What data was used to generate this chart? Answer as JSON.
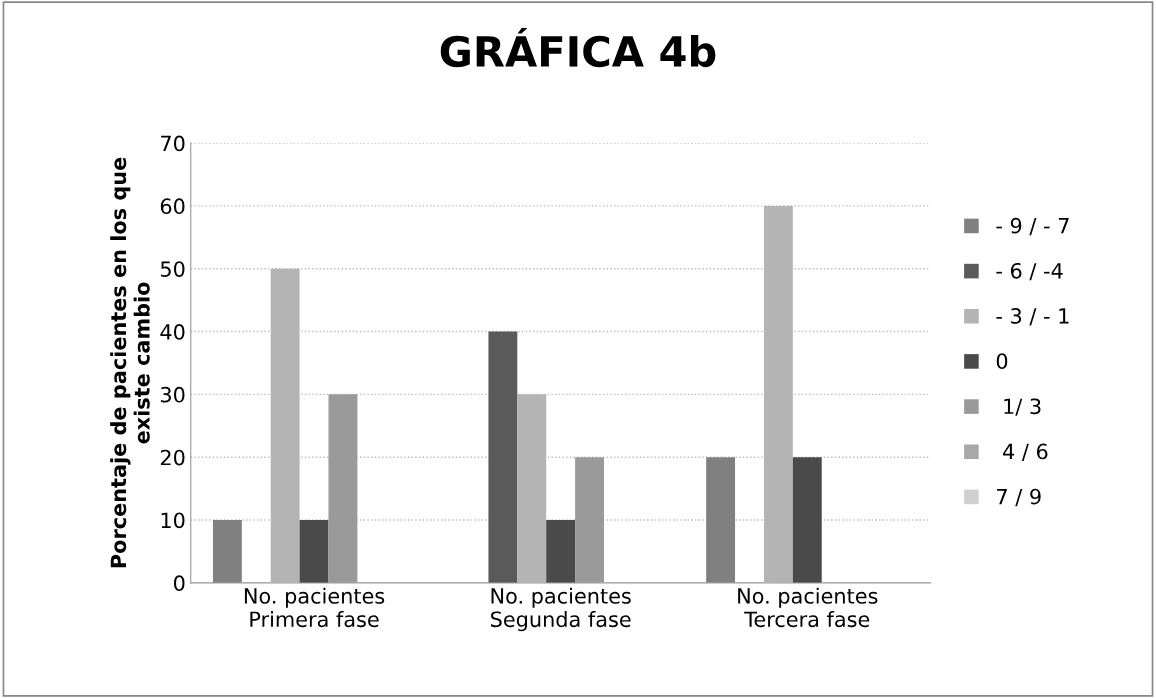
{
  "chart_data": {
    "type": "bar",
    "title": "GRÁFICA 4b",
    "ylabel": "Porcentaje de pacientes en los que\nexiste cambio",
    "categories": [
      "No. pacientes\nPrimera fase",
      "No. pacientes\nSegunda fase",
      "No. pacientes\nTercera fase"
    ],
    "series": [
      {
        "name": "- 9 / - 7",
        "color": "#808080",
        "values": [
          10,
          0,
          20
        ]
      },
      {
        "name": "- 6 / -4",
        "color": "#5a5a5a",
        "values": [
          0,
          40,
          0
        ]
      },
      {
        "name": "- 3 / - 1",
        "color": "#b4b4b4",
        "values": [
          50,
          30,
          60
        ]
      },
      {
        "name": "0",
        "color": "#4a4a4a",
        "values": [
          10,
          10,
          20
        ]
      },
      {
        "name": " 1/ 3",
        "color": "#9a9a9a",
        "values": [
          30,
          20,
          0
        ]
      },
      {
        "name": " 4 / 6",
        "color": "#a8a8a8",
        "values": [
          0,
          0,
          0
        ]
      },
      {
        "name": "7 / 9",
        "color": "#d0d0d0",
        "values": [
          0,
          0,
          0
        ]
      }
    ],
    "ylim": [
      0,
      70
    ],
    "yticks": [
      0,
      10,
      20,
      30,
      40,
      50,
      60,
      70
    ],
    "grid": "y",
    "legend": "right"
  }
}
